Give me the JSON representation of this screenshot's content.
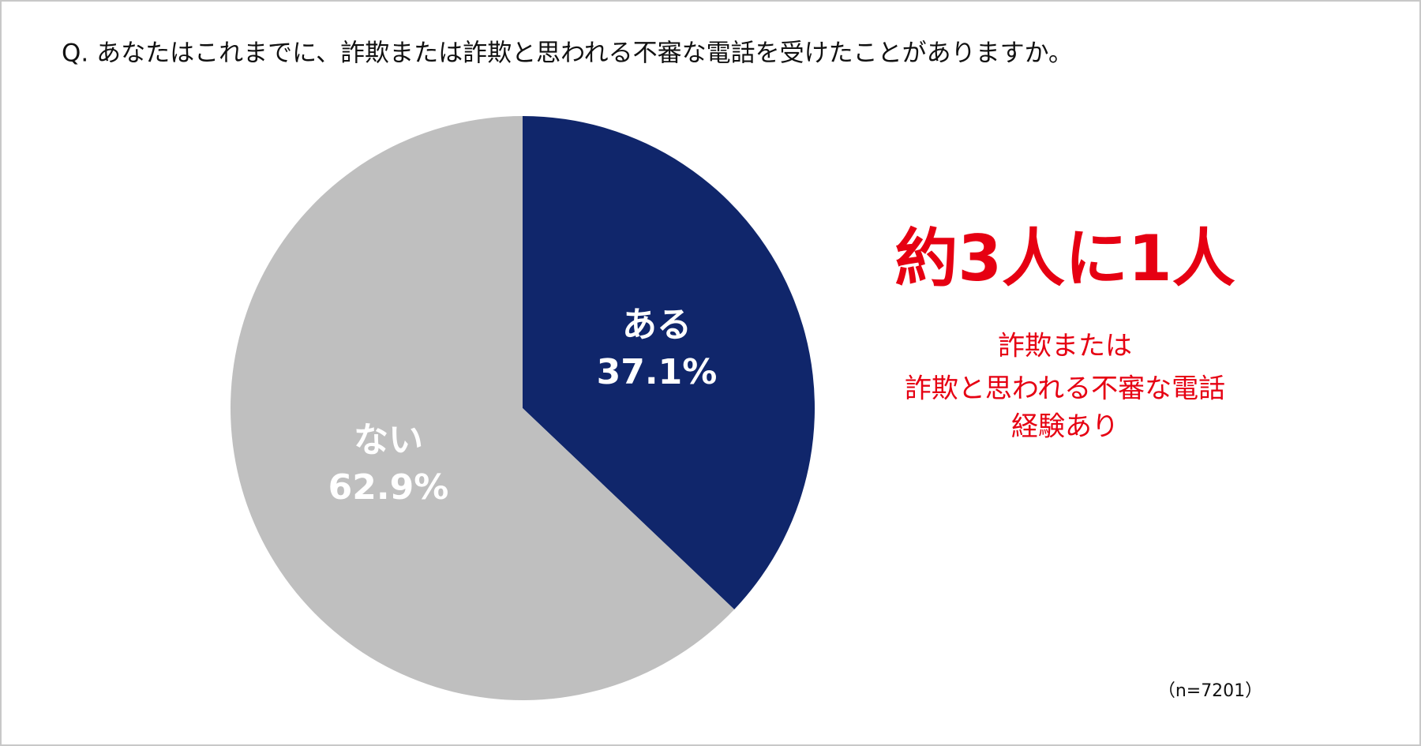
{
  "chart_data": {
    "type": "pie",
    "title": "Q. あなたはこれまでに、詐欺または詐欺と思われる不審な電話を受けたことがありますか。",
    "categories": [
      "ある",
      "ない"
    ],
    "values": [
      37.1,
      62.9
    ],
    "value_labels": [
      "37.1%",
      "62.9%"
    ],
    "colors": [
      "#10266b",
      "#bfbfbf"
    ],
    "annotation": "約3人に1人",
    "annotation_detail": [
      "詐欺または",
      "詐欺と思われる不審な電話",
      "経験あり"
    ],
    "note": "（n=7201）"
  }
}
